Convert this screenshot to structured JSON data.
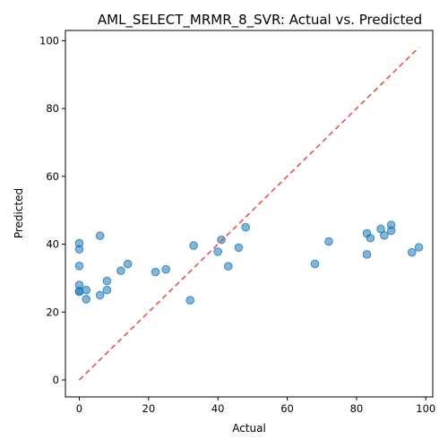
{
  "chart_data": {
    "type": "scatter",
    "title": "AML_SELECT_MRMR_8_SVR: Actual vs. Predicted",
    "xlabel": "Actual",
    "ylabel": "Predicted",
    "xlim": [
      -4,
      102
    ],
    "ylim": [
      -5,
      103
    ],
    "xticks": [
      0,
      20,
      40,
      60,
      80,
      100
    ],
    "yticks": [
      0,
      20,
      40,
      60,
      80,
      100
    ],
    "grid": false,
    "point_color": "#1f77b4",
    "reference_line": {
      "from": [
        0,
        0
      ],
      "to": [
        98,
        98
      ],
      "color": "#e8534a",
      "style": "dashed"
    },
    "x": [
      0,
      0,
      0,
      0,
      0,
      0,
      2,
      2,
      6,
      6,
      8,
      8,
      12,
      14,
      22,
      25,
      32,
      33,
      40,
      41,
      43,
      46,
      48,
      68,
      72,
      83,
      83,
      84,
      87,
      88,
      90,
      90,
      96,
      98
    ],
    "y": [
      40.3,
      38.5,
      33.6,
      28.0,
      26.0,
      26.2,
      26.5,
      23.8,
      42.5,
      25.0,
      29.2,
      26.5,
      32.2,
      34.2,
      31.8,
      32.6,
      23.5,
      39.6,
      37.8,
      41.3,
      33.5,
      39.0,
      45.0,
      34.2,
      40.8,
      43.2,
      37.0,
      41.8,
      44.5,
      42.6,
      45.7,
      44.0,
      37.6,
      39.1
    ]
  }
}
